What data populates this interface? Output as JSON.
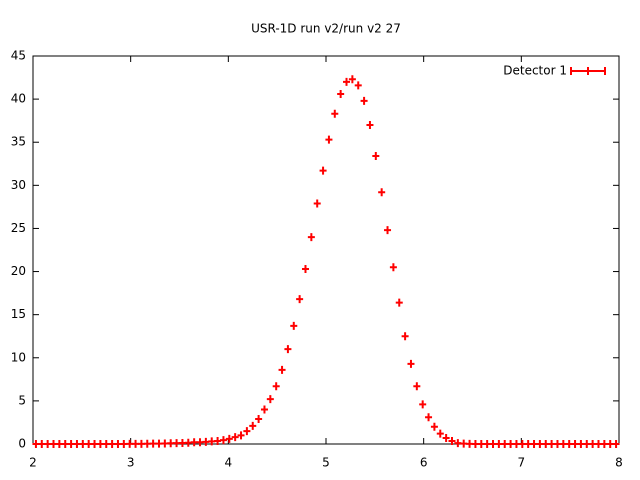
{
  "chart_data": {
    "type": "scatter",
    "title": "USR-1D run v2/run v2 27",
    "xlim": [
      2,
      8
    ],
    "ylim": [
      0,
      45
    ],
    "xticks": [
      2,
      3,
      4,
      5,
      6,
      7,
      8
    ],
    "yticks": [
      0,
      5,
      10,
      15,
      20,
      25,
      30,
      35,
      40,
      45
    ],
    "legend": "top-right",
    "x": [
      2.03,
      2.09,
      2.15,
      2.21,
      2.27,
      2.33,
      2.39,
      2.45,
      2.51,
      2.57,
      2.63,
      2.69,
      2.75,
      2.81,
      2.87,
      2.93,
      2.99,
      3.05,
      3.11,
      3.17,
      3.23,
      3.29,
      3.35,
      3.41,
      3.47,
      3.53,
      3.59,
      3.65,
      3.71,
      3.77,
      3.83,
      3.89,
      3.95,
      4.01,
      4.07,
      4.13,
      4.19,
      4.25,
      4.31,
      4.37,
      4.43,
      4.49,
      4.55,
      4.61,
      4.67,
      4.73,
      4.79,
      4.85,
      4.91,
      4.97,
      5.03,
      5.09,
      5.15,
      5.21,
      5.27,
      5.33,
      5.39,
      5.45,
      5.51,
      5.57,
      5.63,
      5.69,
      5.75,
      5.81,
      5.87,
      5.93,
      5.99,
      6.05,
      6.11,
      6.17,
      6.23,
      6.29,
      6.35,
      6.41,
      6.47,
      6.53,
      6.59,
      6.65,
      6.71,
      6.77,
      6.83,
      6.89,
      6.95,
      7.01,
      7.07,
      7.13,
      7.19,
      7.25,
      7.31,
      7.37,
      7.43,
      7.49,
      7.55,
      7.61,
      7.67,
      7.73,
      7.79,
      7.85,
      7.91,
      7.97
    ],
    "series": [
      {
        "name": "Detector 1",
        "color": "#ff0000",
        "values": [
          0,
          0,
          0,
          0,
          0,
          0,
          0,
          0,
          0,
          0,
          0,
          0,
          0,
          0,
          0,
          0,
          0.01,
          0.01,
          0.02,
          0.03,
          0.04,
          0.05,
          0.06,
          0.08,
          0.1,
          0.12,
          0.15,
          0.2,
          0.2,
          0.25,
          0.3,
          0.35,
          0.45,
          0.6,
          0.8,
          1.0,
          1.5,
          2.1,
          2.9,
          4.0,
          5.2,
          6.7,
          8.6,
          11.0,
          13.7,
          16.8,
          20.3,
          24.0,
          27.9,
          31.7,
          35.3,
          38.3,
          40.6,
          42.0,
          42.3,
          41.6,
          39.8,
          37.0,
          33.4,
          29.2,
          24.8,
          20.5,
          16.4,
          12.5,
          9.3,
          6.7,
          4.6,
          3.1,
          2.0,
          1.2,
          0.7,
          0.35,
          0.1,
          0.05,
          0.02,
          0,
          0,
          0,
          0,
          0,
          0,
          0,
          0,
          0,
          0,
          0,
          0,
          0,
          0,
          0,
          0,
          0,
          0,
          0,
          0,
          0,
          0,
          0,
          0,
          0
        ]
      }
    ]
  }
}
